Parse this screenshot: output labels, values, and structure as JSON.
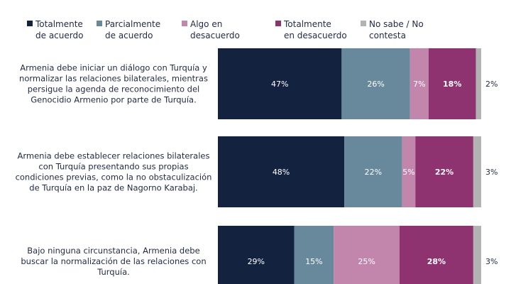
{
  "chart_data": {
    "type": "bar",
    "orientation": "horizontal",
    "stacked": true,
    "percent_labels": true,
    "categories": [
      "Armenia debe iniciar un diálogo con Turquía y normalizar las relaciones bilaterales, mientras persigue la agenda de reconocimiento del Genocidio Armenio por parte de Turquía.",
      "Armenia debe establecer relaciones bilaterales con Turquía presentando sus propias condiciones previas, como la no obstaculización de Turquía en la paz de Nagorno Karabaj.",
      "Bajo ninguna circunstancia, Armenia debe buscar la normalización de las relaciones con Turquía."
    ],
    "category_lines": [
      [
        "Armenia debe iniciar un diálogo con Turquía y",
        "normalizar las relaciones bilaterales, mientras",
        "persigue la agenda de reconocimiento del",
        "Genocidio Armenio por parte de Turquía."
      ],
      [
        "Armenia debe establecer relaciones bilaterales",
        "con Turquía presentando sus propias",
        "condiciones previas, como la no obstaculización",
        "de Turquía en la paz de Nagorno Karabaj."
      ],
      [
        "Bajo ninguna circunstancia, Armenia debe",
        "buscar la normalización de las relaciones con",
        "Turquía."
      ]
    ],
    "series": [
      {
        "name": "Totalmente de acuerdo",
        "name_lines": [
          "Totalmente",
          "de acuerdo"
        ],
        "color": "#13233f",
        "label_color": "#ffffff",
        "values": [
          47,
          48,
          29
        ]
      },
      {
        "name": "Parcialmente de acuerdo",
        "name_lines": [
          "Parcialmente",
          "de acuerdo"
        ],
        "color": "#68889c",
        "label_color": "#ffffff",
        "values": [
          26,
          22,
          15
        ]
      },
      {
        "name": "Algo en desacuerdo",
        "name_lines": [
          "Algo en desacuerdo"
        ],
        "color": "#c286ad",
        "label_color": "#ffffff",
        "values": [
          7,
          5,
          25
        ]
      },
      {
        "name": "Totalmente en desacuerdo",
        "name_lines": [
          "Totalmente",
          "en desacuerdo"
        ],
        "color": "#8e3370",
        "label_color": "#ffffff",
        "values": [
          18,
          22,
          28
        ]
      },
      {
        "name": "No sabe / No contesta",
        "name_lines": [
          "No sabe / No contesta"
        ],
        "color": "#b3b3b3",
        "label_color": "#1f2a44",
        "values": [
          2,
          3,
          3
        ]
      }
    ],
    "xlim": [
      0,
      100
    ],
    "grid": false,
    "legend_position": "top"
  }
}
